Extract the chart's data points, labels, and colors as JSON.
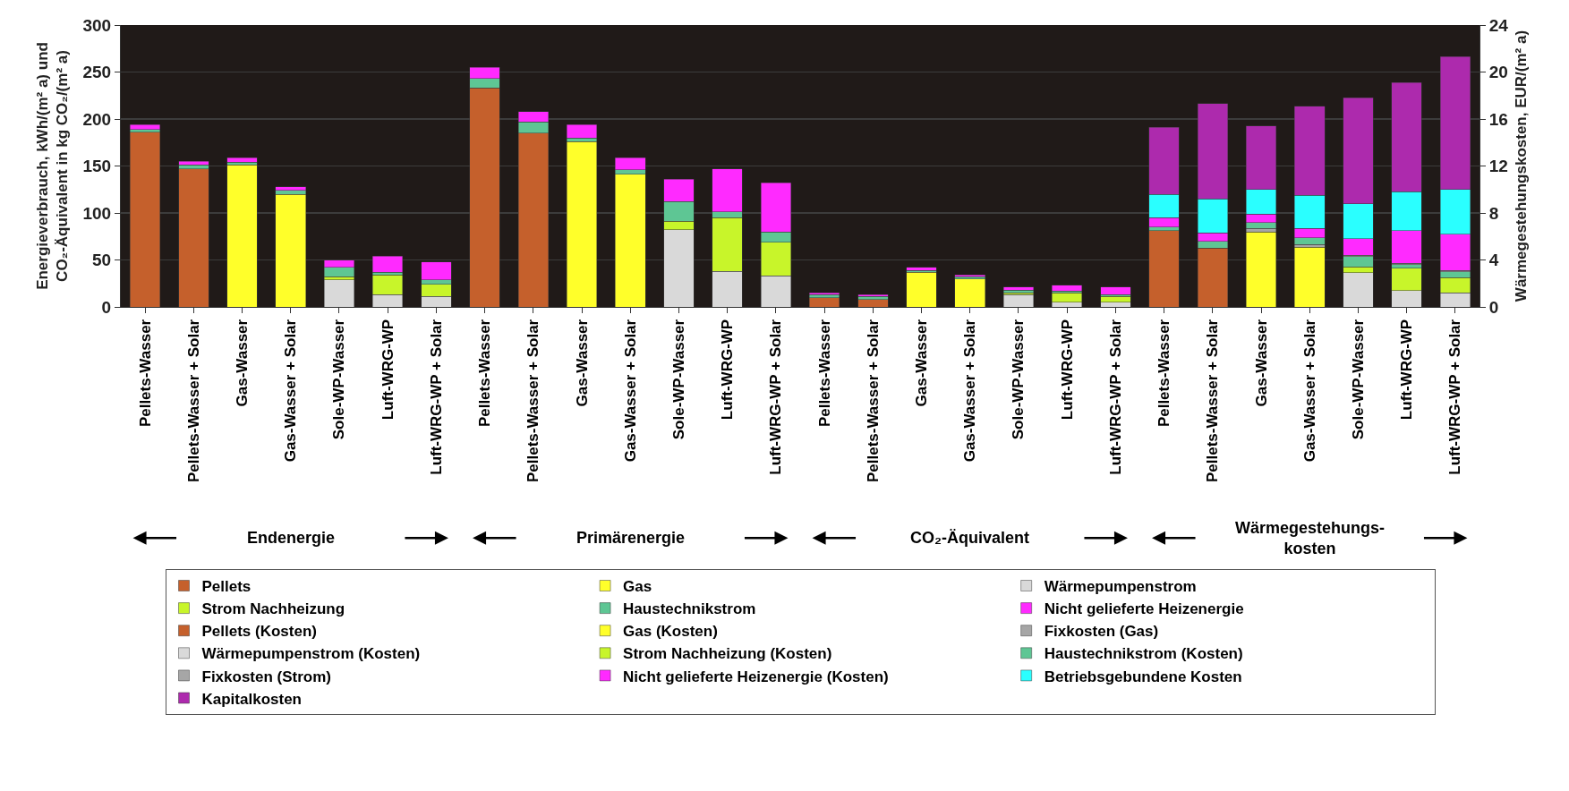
{
  "chart_data": {
    "type": "bar",
    "stacked": true,
    "ylabel": "Energieverbrauch, kWh/(m² a) und\nCO₂-Äquivalent in kg CO₂/(m² a)",
    "y2label": "Wärmegestehungskosten, EUR/(m² a)",
    "categories": [
      "Pellets-Wasser",
      "Pellets-Wasser + Solar",
      "Gas-Wasser",
      "Gas-Wasser + Solar",
      "Sole-WP-Wasser",
      "Luft-WRG-WP",
      "Luft-WRG-WP + Solar",
      "Pellets-Wasser",
      "Pellets-Wasser + Solar",
      "Gas-Wasser",
      "Gas-Wasser + Solar",
      "Sole-WP-Wasser",
      "Luft-WRG-WP",
      "Luft-WRG-WP + Solar",
      "Pellets-Wasser",
      "Pellets-Wasser + Solar",
      "Gas-Wasser",
      "Gas-Wasser + Solar",
      "Sole-WP-Wasser",
      "Luft-WRG-WP",
      "Luft-WRG-WP + Solar",
      "Pellets-Wasser",
      "Pellets-Wasser + Solar",
      "Gas-Wasser",
      "Gas-Wasser + Solar",
      "Sole-WP-Wasser",
      "Luft-WRG-WP",
      "Luft-WRG-WP + Solar"
    ],
    "series": [
      {
        "name": "Pellets",
        "color": "#c5602c",
        "values": [
          186,
          147,
          null,
          null,
          null,
          null,
          null,
          233,
          185,
          null,
          null,
          null,
          null,
          null,
          10,
          8,
          null,
          null,
          null,
          null,
          null,
          null,
          null,
          null,
          null,
          null,
          null,
          null
        ]
      },
      {
        "name": "Gas",
        "color": "#ffff2a",
        "values": [
          null,
          null,
          151,
          120,
          null,
          null,
          null,
          null,
          null,
          176,
          141,
          null,
          null,
          null,
          null,
          null,
          37,
          30,
          null,
          null,
          null,
          null,
          null,
          null,
          null,
          null,
          null,
          null
        ]
      },
      {
        "name": "Wärmepumpenstrom",
        "color": "#d9d9d9",
        "values": [
          null,
          null,
          null,
          null,
          29,
          13,
          11,
          null,
          null,
          null,
          null,
          82,
          38,
          33,
          null,
          null,
          null,
          null,
          13,
          5,
          5,
          null,
          null,
          null,
          null,
          null,
          null,
          null
        ]
      },
      {
        "name": "Strom Nachheizung",
        "color": "#c8f52a",
        "values": [
          null,
          null,
          null,
          null,
          3,
          21,
          13,
          null,
          null,
          null,
          null,
          9,
          57,
          36,
          null,
          null,
          null,
          null,
          2,
          10,
          6,
          null,
          null,
          null,
          null,
          null,
          null,
          null
        ]
      },
      {
        "name": "Haustechnikstrom",
        "color": "#5ec694",
        "values": [
          3,
          4,
          3,
          4,
          10,
          3,
          5,
          10,
          12,
          4,
          5,
          21,
          6,
          11,
          3,
          3,
          2,
          2,
          3,
          2,
          2,
          null,
          null,
          null,
          null,
          null,
          null,
          null
        ]
      },
      {
        "name": "Nicht gelieferte Heizenergie",
        "color": "#ff2aff",
        "values": [
          5,
          4,
          5,
          4,
          8,
          17,
          19,
          12,
          11,
          14,
          13,
          24,
          46,
          52,
          2,
          2,
          3,
          2,
          3,
          6,
          8,
          null,
          null,
          null,
          null,
          null,
          null,
          null
        ]
      },
      {
        "name": "Pellets (Kosten)",
        "color": "#c5602c",
        "axis": "y2",
        "values": [
          null,
          null,
          null,
          null,
          null,
          null,
          null,
          null,
          null,
          null,
          null,
          null,
          null,
          null,
          null,
          null,
          null,
          null,
          null,
          null,
          null,
          6.5,
          5.0,
          null,
          null,
          null,
          null,
          null
        ]
      },
      {
        "name": "Gas (Kosten)",
        "color": "#ffff2a",
        "axis": "y2",
        "values": [
          null,
          null,
          null,
          null,
          null,
          null,
          null,
          null,
          null,
          null,
          null,
          null,
          null,
          null,
          null,
          null,
          null,
          null,
          null,
          null,
          null,
          null,
          null,
          6.4,
          5.1,
          null,
          null,
          null
        ]
      },
      {
        "name": "Fixkosten (Gas)",
        "color": "#a6a6a6",
        "axis": "y2",
        "values": [
          null,
          null,
          null,
          null,
          null,
          null,
          null,
          null,
          null,
          null,
          null,
          null,
          null,
          null,
          null,
          null,
          null,
          null,
          null,
          null,
          null,
          null,
          null,
          0.3,
          0.2,
          null,
          null,
          null
        ]
      },
      {
        "name": "Wärmepumpenstrom (Kosten)",
        "color": "#d9d9d9",
        "axis": "y2",
        "values": [
          null,
          null,
          null,
          null,
          null,
          null,
          null,
          null,
          null,
          null,
          null,
          null,
          null,
          null,
          null,
          null,
          null,
          null,
          null,
          null,
          null,
          null,
          null,
          null,
          null,
          2.9,
          1.4,
          1.2
        ]
      },
      {
        "name": "Strom Nachheizung (Kosten)",
        "color": "#c8f52a",
        "axis": "y2",
        "values": [
          null,
          null,
          null,
          null,
          null,
          null,
          null,
          null,
          null,
          null,
          null,
          null,
          null,
          null,
          null,
          null,
          null,
          null,
          null,
          null,
          null,
          null,
          null,
          null,
          null,
          0.5,
          1.9,
          1.3
        ]
      },
      {
        "name": "Haustechnikstrom (Kosten)",
        "color": "#5ec694",
        "axis": "y2",
        "values": [
          null,
          null,
          null,
          null,
          null,
          null,
          null,
          null,
          null,
          null,
          null,
          null,
          null,
          null,
          null,
          null,
          null,
          null,
          null,
          null,
          null,
          0.3,
          0.6,
          0.5,
          0.6,
          0.9,
          0.3,
          0.5
        ]
      },
      {
        "name": "Fixkosten (Strom)",
        "color": "#a6a6a6",
        "axis": "y2",
        "values": [
          null,
          null,
          null,
          null,
          null,
          null,
          null,
          null,
          null,
          null,
          null,
          null,
          null,
          null,
          null,
          null,
          null,
          null,
          null,
          null,
          null,
          null,
          null,
          null,
          null,
          0.1,
          0.1,
          0.1
        ]
      },
      {
        "name": "Nicht gelieferte Heizenergie (Kosten)",
        "color": "#ff2aff",
        "axis": "y2",
        "values": [
          null,
          null,
          null,
          null,
          null,
          null,
          null,
          null,
          null,
          null,
          null,
          null,
          null,
          null,
          null,
          null,
          null,
          null,
          null,
          null,
          null,
          0.8,
          0.7,
          0.7,
          0.8,
          1.4,
          2.8,
          3.1
        ]
      },
      {
        "name": "Betriebsgebundene Kosten",
        "color": "#2affff",
        "axis": "y2",
        "values": [
          null,
          null,
          null,
          null,
          null,
          null,
          null,
          null,
          null,
          null,
          null,
          null,
          null,
          null,
          null,
          null,
          null,
          null,
          null,
          null,
          null,
          2.0,
          2.9,
          2.1,
          2.8,
          3.0,
          3.3,
          3.8
        ]
      },
      {
        "name": "Kapitalkosten",
        "color": "#ad2aad",
        "axis": "y2",
        "values": [
          null,
          null,
          null,
          null,
          null,
          null,
          null,
          null,
          null,
          null,
          null,
          null,
          null,
          null,
          null,
          null,
          null,
          null,
          null,
          null,
          null,
          5.7,
          8.1,
          5.4,
          7.6,
          9.0,
          9.3,
          11.3
        ]
      }
    ],
    "ylim": [
      0,
      300
    ],
    "yticks": [
      0,
      50,
      100,
      150,
      200,
      250,
      300
    ],
    "y2lim": [
      0,
      24
    ],
    "y2ticks": [
      0,
      4,
      8,
      12,
      16,
      20,
      24
    ],
    "grid": "y",
    "legend": "bottom",
    "annotations": [
      "Endenergie",
      "Primärenergie",
      "CO₂-Äquivalent",
      "Wärmegestehungs-\nkosten"
    ]
  }
}
